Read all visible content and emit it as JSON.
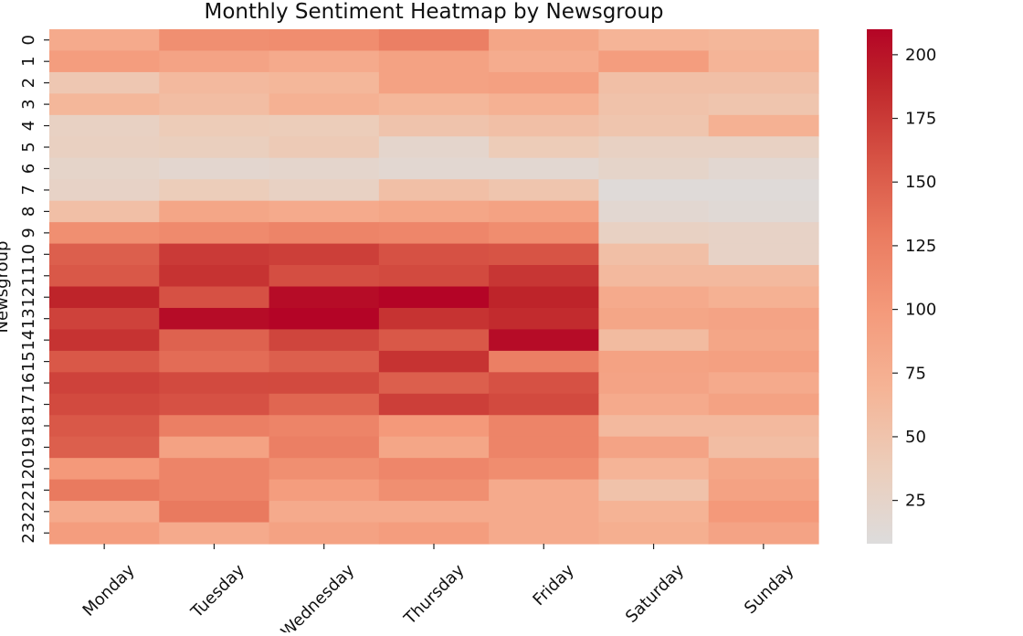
{
  "chart_data": {
    "type": "heatmap",
    "title": "Monthly Sentiment Heatmap by Newsgroup",
    "ylabel": "Newsgroup",
    "xlabel": "",
    "x_categories": [
      "Monday",
      "Tuesday",
      "Wednesday",
      "Thursday",
      "Friday",
      "Saturday",
      "Sunday"
    ],
    "y_categories": [
      "0",
      "1",
      "2",
      "3",
      "4",
      "5",
      "6",
      "7",
      "8",
      "9",
      "10",
      "11",
      "12",
      "13",
      "14",
      "15",
      "16",
      "17",
      "18",
      "19",
      "20",
      "21",
      "22",
      "23"
    ],
    "values": [
      [
        80,
        110,
        112,
        125,
        85,
        68,
        65
      ],
      [
        95,
        88,
        80,
        90,
        78,
        95,
        68
      ],
      [
        45,
        62,
        65,
        90,
        92,
        55,
        55
      ],
      [
        65,
        58,
        72,
        65,
        72,
        52,
        48
      ],
      [
        30,
        40,
        38,
        50,
        55,
        48,
        72
      ],
      [
        32,
        35,
        42,
        22,
        40,
        30,
        30
      ],
      [
        25,
        20,
        22,
        18,
        18,
        25,
        18
      ],
      [
        28,
        38,
        30,
        55,
        48,
        12,
        12
      ],
      [
        55,
        85,
        80,
        85,
        90,
        18,
        14
      ],
      [
        110,
        115,
        120,
        118,
        112,
        30,
        28
      ],
      [
        150,
        175,
        172,
        160,
        158,
        55,
        28
      ],
      [
        155,
        180,
        162,
        165,
        178,
        62,
        62
      ],
      [
        190,
        160,
        205,
        210,
        190,
        80,
        72
      ],
      [
        170,
        205,
        210,
        180,
        185,
        85,
        88
      ],
      [
        180,
        148,
        168,
        155,
        205,
        60,
        85
      ],
      [
        155,
        140,
        150,
        180,
        125,
        90,
        92
      ],
      [
        170,
        165,
        165,
        150,
        160,
        88,
        80
      ],
      [
        165,
        160,
        145,
        172,
        165,
        80,
        90
      ],
      [
        155,
        125,
        120,
        100,
        120,
        62,
        62
      ],
      [
        150,
        90,
        125,
        85,
        120,
        88,
        58
      ],
      [
        100,
        120,
        110,
        118,
        112,
        68,
        85
      ],
      [
        130,
        120,
        95,
        110,
        80,
        52,
        90
      ],
      [
        80,
        130,
        80,
        80,
        80,
        70,
        100
      ],
      [
        95,
        80,
        90,
        95,
        80,
        75,
        88
      ]
    ],
    "colorbar": {
      "min": 8,
      "max": 210,
      "ticks": [
        25,
        50,
        75,
        100,
        125,
        150,
        175,
        200
      ],
      "colormap": "coolwarm (upper half)",
      "low_color": "#dddcdc",
      "high_color": "#b40426"
    },
    "legend": "none",
    "grid": false
  }
}
